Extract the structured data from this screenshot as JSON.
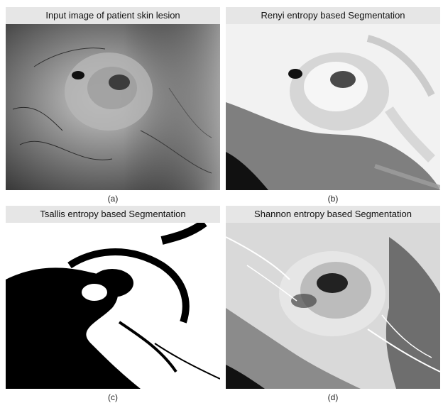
{
  "panels": [
    {
      "id": "a",
      "title": "Input image of patient skin lesion",
      "caption": "(a)"
    },
    {
      "id": "b",
      "title": "Renyi entropy based Segmentation",
      "caption": "(b)"
    },
    {
      "id": "c",
      "title": "Tsallis entropy based Segmentation",
      "caption": "(c)"
    },
    {
      "id": "d",
      "title": "Shannon entropy based Segmentation",
      "caption": "(d)"
    }
  ]
}
